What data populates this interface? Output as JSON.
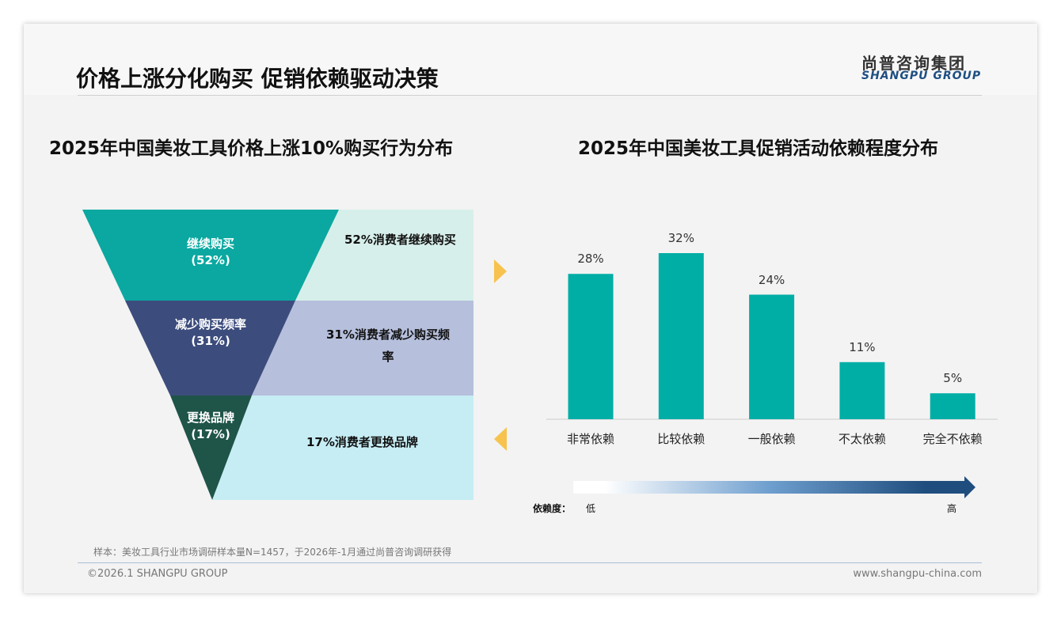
{
  "title": "价格上涨分化购买 促销依赖驱动决策",
  "logo": {
    "cn": "尚普咨询集团",
    "en": "SHANGPU GROUP"
  },
  "left": {
    "subtitle": "2025年中国美妆工具价格上涨10%购买行为分布",
    "stages": [
      {
        "label": "继续购买",
        "pct": "(52%)",
        "desc": "52%消费者继续购买",
        "color": "#0aa8a0",
        "panel": "#d7efea"
      },
      {
        "label": "减少购买频率",
        "pct": "(31%)",
        "desc": "31%消费者减少购买频率",
        "color": "#3c4c7c",
        "panel": "#b6bfdc"
      },
      {
        "label": "更换品牌",
        "pct": "(17%)",
        "desc": "17%消费者更换品牌",
        "color": "#1f5449",
        "panel": "#c6edf4"
      }
    ]
  },
  "chart_data": {
    "type": "bar",
    "title": "2025年中国美妆工具促销活动依赖程度分布",
    "categories": [
      "非常依赖",
      "比较依赖",
      "一般依赖",
      "不太依赖",
      "完全不依赖"
    ],
    "values": [
      28,
      32,
      24,
      11,
      5
    ],
    "labels": [
      "28%",
      "32%",
      "24%",
      "11%",
      "5%"
    ],
    "ylim": [
      0,
      32
    ],
    "color": "#00aea6"
  },
  "scale": {
    "label": "依赖度：",
    "low": "低",
    "high": "高"
  },
  "note": "样本：美妆工具行业市场调研样本量N=1457，于2026年-1月通过尚普咨询调研获得",
  "footer": {
    "left": "©2026.1 SHANGPU GROUP",
    "right": "www.shangpu-china.com"
  }
}
